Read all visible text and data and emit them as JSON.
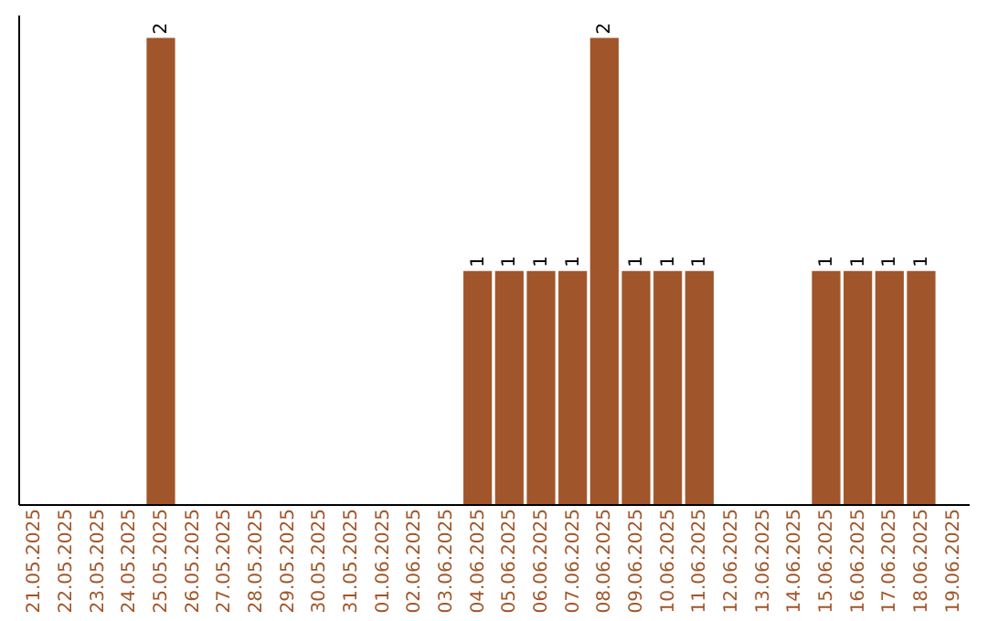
{
  "chart_data": {
    "type": "bar",
    "categories": [
      "21.05.2025",
      "22.05.2025",
      "23.05.2025",
      "24.05.2025",
      "25.05.2025",
      "26.05.2025",
      "27.05.2025",
      "28.05.2025",
      "29.05.2025",
      "30.05.2025",
      "31.05.2025",
      "01.06.2025",
      "02.06.2025",
      "03.06.2025",
      "04.06.2025",
      "05.06.2025",
      "06.06.2025",
      "07.06.2025",
      "08.06.2025",
      "09.06.2025",
      "10.06.2025",
      "11.06.2025",
      "12.06.2025",
      "13.06.2025",
      "14.06.2025",
      "15.06.2025",
      "16.06.2025",
      "17.06.2025",
      "18.06.2025",
      "19.06.2025"
    ],
    "values": [
      0,
      0,
      0,
      0,
      2,
      0,
      0,
      0,
      0,
      0,
      0,
      0,
      0,
      0,
      1,
      1,
      1,
      1,
      2,
      1,
      1,
      1,
      0,
      0,
      0,
      1,
      1,
      1,
      1,
      0
    ],
    "value_labels": [
      null,
      null,
      null,
      null,
      "2",
      null,
      null,
      null,
      null,
      null,
      null,
      null,
      null,
      null,
      "1",
      "1",
      "1",
      "1",
      "2",
      "1",
      "1",
      "1",
      null,
      null,
      null,
      "1",
      "1",
      "1",
      "1",
      null
    ],
    "color": "#a0562a",
    "ylim": [
      0,
      2.1
    ],
    "tick_labels": "x",
    "grid": false
  }
}
